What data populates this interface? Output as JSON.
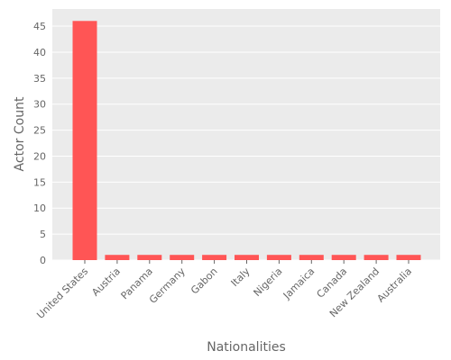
{
  "chart_data": {
    "type": "bar",
    "title": "",
    "xlabel": "Nationalities",
    "ylabel": "Actor Count",
    "categories": [
      "United States",
      "Austria",
      "Panama",
      "Germany",
      "Gabon",
      "Italy",
      "Nigeria",
      "Jamaica",
      "Canada",
      "New Zealand",
      "Australia"
    ],
    "values": [
      46,
      1,
      1,
      1,
      1,
      1,
      1,
      1,
      1,
      1,
      1
    ],
    "ylim": [
      0,
      48.3
    ],
    "yticks": [
      0,
      5,
      10,
      15,
      20,
      25,
      30,
      35,
      40,
      45
    ],
    "grid": true,
    "bar_color": "#ff5555",
    "plot_background": "#ebebeb",
    "grid_color": "#ffffff",
    "text_color": "#666666"
  }
}
